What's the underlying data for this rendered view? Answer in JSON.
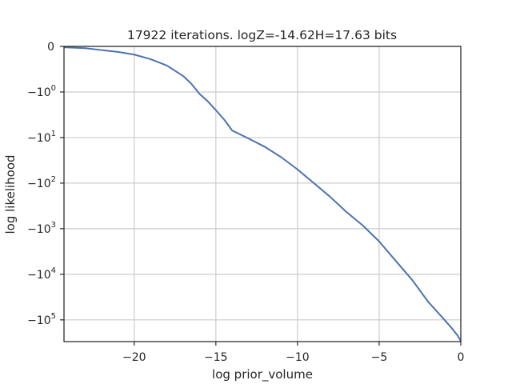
{
  "chart_data": {
    "type": "line",
    "title": "17922 iterations. logZ=-14.62H=17.63 bits",
    "xlabel": "log prior_volume",
    "ylabel": "log likelihood",
    "xlim": [
      -24.3,
      0
    ],
    "y_scale": "symlog",
    "ylim": [
      0,
      -300000
    ],
    "grid": true,
    "legend": "none",
    "line_color": "#4c72b0",
    "x_ticks": [
      {
        "value": -20,
        "label": "−20"
      },
      {
        "value": -15,
        "label": "−15"
      },
      {
        "value": -10,
        "label": "−10"
      },
      {
        "value": -5,
        "label": "−5"
      },
      {
        "value": 0,
        "label": "0"
      }
    ],
    "y_ticks": [
      {
        "value": 0,
        "label": "0",
        "exp": ""
      },
      {
        "value": -1,
        "label": "−10",
        "exp": "0"
      },
      {
        "value": -10,
        "label": "−10",
        "exp": "1"
      },
      {
        "value": -100,
        "label": "−10",
        "exp": "2"
      },
      {
        "value": -1000,
        "label": "−10",
        "exp": "3"
      },
      {
        "value": -10000,
        "label": "−10",
        "exp": "4"
      },
      {
        "value": -100000,
        "label": "−10",
        "exp": "5"
      }
    ],
    "series": [
      {
        "x": [
          -24.3,
          -23,
          -22,
          -21,
          -20,
          -19,
          -18,
          -17,
          -16.5,
          -16,
          -15.5,
          -15,
          -14.5,
          -14,
          -13,
          -12,
          -11,
          -10,
          -9,
          -8,
          -7,
          -6,
          -5,
          -4,
          -3,
          -2,
          -1,
          -0.5,
          -0.2,
          -0.05,
          0
        ],
        "y": [
          -0.02,
          -0.04,
          -0.08,
          -0.12,
          -0.18,
          -0.28,
          -0.42,
          -0.65,
          -0.82,
          -1.1,
          -1.6,
          -2.5,
          -4,
          -7,
          -10.5,
          -16,
          -27,
          -50,
          -100,
          -200,
          -430,
          -850,
          -1900,
          -5000,
          -13000,
          -40000,
          -100000,
          -160000,
          -220000,
          -270000,
          -300000
        ]
      }
    ]
  }
}
